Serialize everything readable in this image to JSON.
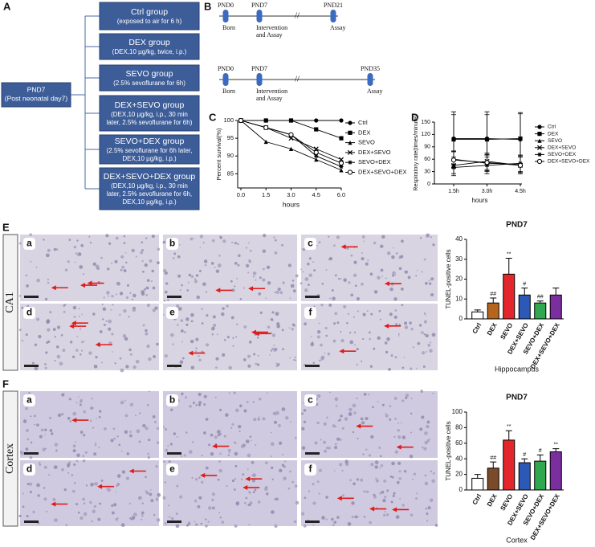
{
  "panel_labels": [
    "A",
    "B",
    "C",
    "D",
    "E",
    "F"
  ],
  "panel_a": {
    "root": [
      "PND7",
      "(Post neonatal day7)"
    ],
    "groups": [
      {
        "title": "Ctrl group",
        "lines": [
          "(exposed to air for 6 h)"
        ]
      },
      {
        "title": "DEX group",
        "lines": [
          "(DEX,10 µg/kg, twice, i.p.)"
        ]
      },
      {
        "title": "SEVO group",
        "lines": [
          "(2.5% sevoflurane for 6h)"
        ]
      },
      {
        "title": "DEX+SEVO group",
        "lines": [
          "(DEX,10 µg/kg, i.p., 30 min",
          "later, 2.5% sevoflurane for 6h)"
        ]
      },
      {
        "title": "SEVO+DEX group",
        "lines": [
          "(2.5% sevoflurane for 6h later,",
          "DEX,10 µg/kg, i.p.)"
        ]
      },
      {
        "title": "DEX+SEVO+DEX group",
        "lines": [
          "(DEX,10 µg/kg, i.p., 30 min",
          "later, 2.5% sevoflurane for 6h,",
          "DEX,10 µg/kg, i.p.)"
        ]
      }
    ]
  },
  "panel_b": {
    "timelines": [
      {
        "points": [
          {
            "label": "PND0",
            "caption": [
              "Born"
            ]
          },
          {
            "label": "PND7",
            "caption": [
              "Intervention",
              "and Assay"
            ]
          },
          {
            "label": "PND21",
            "caption": [
              "Assay"
            ]
          }
        ]
      },
      {
        "points": [
          {
            "label": "PND0",
            "caption": [
              "Born"
            ]
          },
          {
            "label": "PND7",
            "caption": [
              "Intervention",
              "and Assay"
            ]
          },
          {
            "label": "PND35",
            "caption": [
              "Assay"
            ]
          }
        ]
      }
    ]
  },
  "micrographs": {
    "regions": [
      "CA1",
      "Cortex"
    ],
    "letters": [
      "a",
      "b",
      "c",
      "d",
      "e",
      "f"
    ]
  },
  "chart_data": [
    {
      "type": "line",
      "ylabel": "Percent survival(%)",
      "xlabel": "hours",
      "x": [
        0,
        1.5,
        3,
        4.5,
        6
      ],
      "xlim": [
        0,
        6
      ],
      "xticks": [
        {
          "value": 0,
          "label": "0.0"
        },
        1.5,
        {
          "value": 3,
          "label": "3.0"
        },
        4.5,
        {
          "value": 6,
          "label": "6.0"
        }
      ],
      "ylim": [
        81,
        100
      ],
      "yticks": [
        85,
        90,
        95,
        100
      ],
      "legend": "right",
      "series": [
        {
          "name": "Ctrl",
          "color": "#000000",
          "marker": "circle",
          "values": [
            100,
            100,
            100,
            100,
            100
          ]
        },
        {
          "name": "DEX",
          "color": "#000000",
          "marker": "square",
          "values": [
            100,
            100,
            100,
            97.5,
            95
          ]
        },
        {
          "name": "SEVO",
          "color": "#000000",
          "marker": "triangle",
          "values": [
            100,
            94,
            92,
            89,
            86
          ]
        },
        {
          "name": "DEX+SEVO",
          "color": "#000000",
          "marker": "cross",
          "values": [
            100,
            98,
            95,
            92,
            89
          ]
        },
        {
          "name": "SEVO+DEX",
          "color": "#000000",
          "marker": "plus",
          "values": [
            100,
            98,
            96,
            90,
            87
          ]
        },
        {
          "name": "DEX+SEVO+DEX",
          "color": "#000000",
          "marker": "open-circle",
          "values": [
            100,
            98,
            96,
            91,
            88
          ]
        }
      ]
    },
    {
      "type": "line",
      "ylabel": "Respiratory rate(times/minute)",
      "xlabel": "hours",
      "categories": [
        "1.5h",
        "3.0h",
        "4.5h"
      ],
      "ylim": [
        0,
        150
      ],
      "yticks": [
        0,
        30,
        60,
        90,
        120,
        150
      ],
      "legend": "right",
      "series": [
        {
          "name": "Ctrl",
          "color": "#000000",
          "marker": "circle",
          "values": [
            110,
            110,
            108
          ],
          "errors": [
            65,
            65,
            65
          ]
        },
        {
          "name": "DEX",
          "color": "#000000",
          "marker": "square",
          "values": [
            108,
            108,
            110
          ],
          "errors": [
            60,
            60,
            60
          ]
        },
        {
          "name": "SEVO",
          "color": "#000000",
          "marker": "triangle",
          "values": [
            60,
            50,
            48
          ],
          "errors": [
            20,
            20,
            20
          ]
        },
        {
          "name": "DEX+SEVO",
          "color": "#000000",
          "marker": "cross",
          "values": [
            45,
            55,
            45
          ],
          "errors": [
            20,
            20,
            20
          ]
        },
        {
          "name": "SEVO+DEX",
          "color": "#000000",
          "marker": "plus",
          "values": [
            40,
            45,
            50
          ],
          "errors": [
            20,
            20,
            20
          ]
        },
        {
          "name": "DEX+SEVO+DEX",
          "color": "#000000",
          "marker": "open-circle",
          "values": [
            58,
            52,
            45
          ],
          "errors": [
            20,
            20,
            20
          ]
        }
      ]
    },
    {
      "type": "bar",
      "title": "PND7",
      "ylabel": "TUNEL-positive cells",
      "xlabel": "Hippocampus",
      "categories": [
        "Ctrl",
        "DEX",
        "SEVO",
        "DEX+SEVO",
        "SEVO+DEX",
        "DEX+SEVO+DEX"
      ],
      "values": [
        3.5,
        8,
        22.5,
        12,
        8,
        12
      ],
      "errors": [
        1,
        2.5,
        8,
        3.5,
        1,
        3.5
      ],
      "significance": [
        null,
        "##",
        "**",
        "#",
        "##",
        null
      ],
      "colors": [
        "#ffffff",
        "#b5651d",
        "#e3262b",
        "#2b59b5",
        "#2fa84f",
        "#7b2f9e"
      ],
      "ylim": [
        0,
        40
      ],
      "yticks": [
        0,
        10,
        20,
        30,
        40
      ]
    },
    {
      "type": "bar",
      "title": "PND7",
      "ylabel": "TUNEL-positive cells",
      "xlabel": "Cortex",
      "categories": [
        "Ctrl",
        "DEX",
        "SEVO",
        "DEX+SEVO",
        "SEVO+DEX",
        "DEX+SEVO+DEX"
      ],
      "values": [
        15,
        28,
        64,
        35,
        37,
        49
      ],
      "errors": [
        5,
        8,
        12,
        5,
        8,
        4
      ],
      "significance": [
        null,
        "##",
        "**",
        "#",
        "#",
        "**"
      ],
      "colors": [
        "#ffffff",
        "#7a4a2a",
        "#e3262b",
        "#2b59b5",
        "#2fa84f",
        "#7b2f9e"
      ],
      "ylim": [
        0,
        100
      ],
      "yticks": [
        0,
        20,
        40,
        60,
        80,
        100
      ]
    }
  ]
}
